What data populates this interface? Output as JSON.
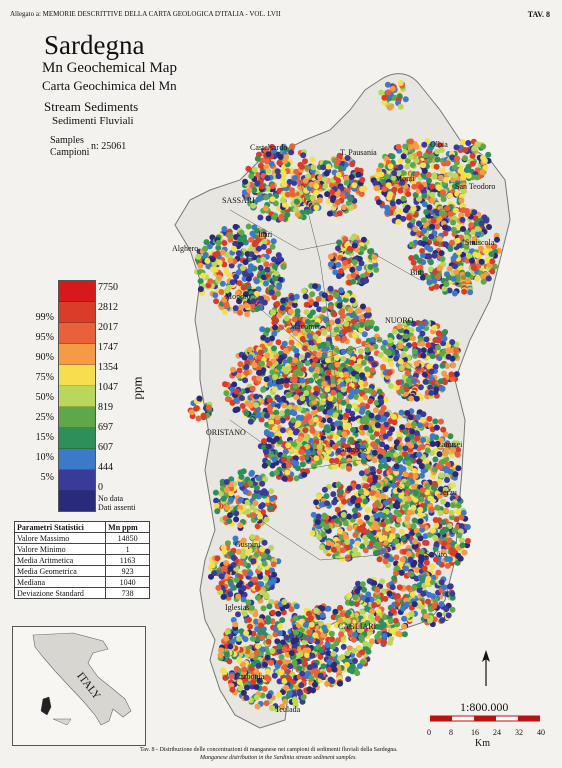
{
  "header": {
    "left": "Allegato a: MEMORIE DESCRITTIVE DELLA CARTA GEOLOGICA D'ITALIA - VOL. LVII",
    "right": "TAV. 8"
  },
  "title": {
    "main": "Sardegna",
    "sub_en": "Mn Geochemical Map",
    "sub_it": "Carta Geochimica del Mn",
    "stream_en": "Stream Sediments",
    "stream_it": "Sedimenti Fluviali",
    "samples_en": "Samples",
    "samples_it": "Campioni",
    "samples_n": "n: 25061"
  },
  "legend": {
    "unit": "ppm",
    "classes": [
      {
        "pct": "",
        "val": "7750",
        "color": "#d7191c"
      },
      {
        "pct": "99%",
        "val": "2812",
        "color": "#d93d2a"
      },
      {
        "pct": "95%",
        "val": "2017",
        "color": "#e8613a"
      },
      {
        "pct": "90%",
        "val": "1747",
        "color": "#f59a45"
      },
      {
        "pct": "75%",
        "val": "1354",
        "color": "#f4e04d"
      },
      {
        "pct": "50%",
        "val": "1047",
        "color": "#b9d75a"
      },
      {
        "pct": "25%",
        "val": "819",
        "color": "#5fa84a"
      },
      {
        "pct": "15%",
        "val": "697",
        "color": "#2f8f5a"
      },
      {
        "pct": "10%",
        "val": "607",
        "color": "#3d79c9"
      },
      {
        "pct": "5%",
        "val": "444",
        "color": "#3a3a9a"
      },
      {
        "pct": "",
        "val": "0",
        "color": "#2a2a7a"
      }
    ],
    "nodata_en": "No data",
    "nodata_it": "Dati assenti"
  },
  "stats": {
    "header": [
      "Parametri Statistici",
      "Mn ppm"
    ],
    "rows": [
      [
        "Valore Massimo",
        "14850"
      ],
      [
        "Valore Minimo",
        "1"
      ],
      [
        "Media Aritmetica",
        "1163"
      ],
      [
        "Media Geometrica",
        "923"
      ],
      [
        "Mediana",
        "1040"
      ],
      [
        "Deviazione Standard",
        "738"
      ]
    ]
  },
  "places": [
    "Castelsardo",
    "Tempio Pausania",
    "Olbia",
    "Monti",
    "San Teodoro",
    "SASSARI",
    "Ittiri",
    "Alghero",
    "Siniscola",
    "Bitti",
    "Macomer",
    "Nuoro",
    "Oristano",
    "Sorgono",
    "Tortoli",
    "Jerzu",
    "Guspini",
    "Muravera",
    "Iglesias",
    "Cagliari",
    "Carbonia",
    "Teulada",
    "Mogoro"
  ],
  "placeLabels": {
    "castelsardo": "Castelsardo",
    "tempio": "T. Pausania",
    "olbia": "Olbia",
    "monti": "Monti",
    "santeodoro": "San Teodoro",
    "sassari": "SASSARI",
    "ittiri": "Ittiri",
    "alghero": "Alghero",
    "siniscola": "Siniscola",
    "bitti": "Bitti",
    "macomer": "Macomer",
    "nuoro": "NUORO",
    "oristano": "ORISTANO",
    "sorgono": "Sorgono",
    "tortoli": "Lanusei",
    "jerzu": "Jerzu",
    "guspini": "Guspini",
    "muravera": "S. Vito",
    "iglesias": "Iglesias",
    "cagliari": "CAGLIARI",
    "carbonia": "Carbonia",
    "teulada": "Teulada",
    "mogoro": "Mogoro"
  },
  "inset": {
    "label": "ITALY"
  },
  "scale": {
    "ratio": "1:800.000",
    "ticks": [
      "0",
      "8",
      "16",
      "24",
      "32",
      "40"
    ],
    "unit": "Km"
  },
  "caption": {
    "it": "Tav. 8 - Distribuzione delle concentrazioni di manganese nei campioni di sedimenti fluviali della Sardegna.",
    "en": "Manganese distribution in the Sardinia stream sediment samples."
  }
}
